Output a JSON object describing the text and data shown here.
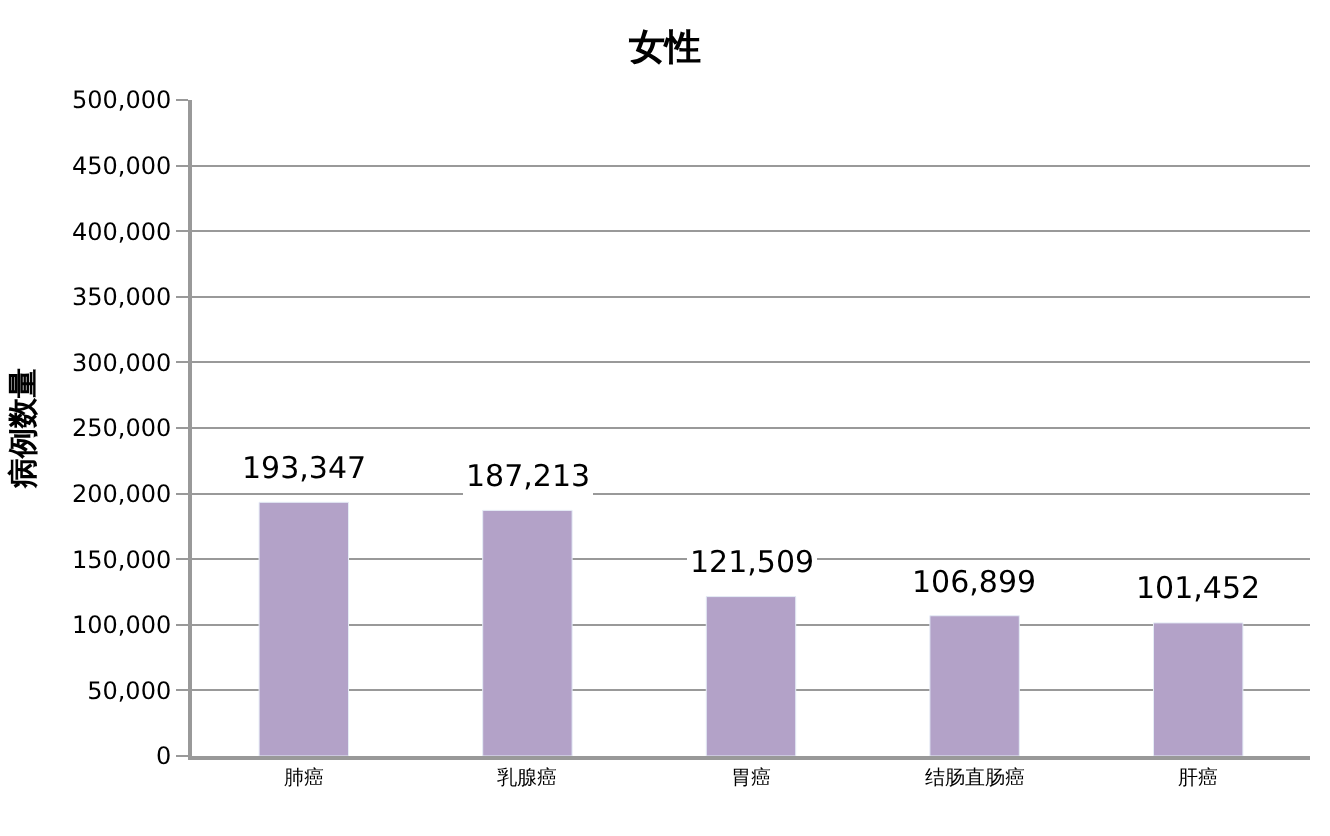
{
  "chart_data": {
    "type": "bar",
    "title": "女性",
    "ylabel": "病例数量",
    "categories": [
      "肺癌",
      "乳腺癌",
      "胃癌",
      "结肠直肠癌",
      "肝癌"
    ],
    "values": [
      193347,
      187213,
      121509,
      106899,
      101452
    ],
    "value_labels": [
      "193,347",
      "187,213",
      "121,509",
      "106,899",
      "101,452"
    ],
    "color": "#b3a2c8",
    "ylim": [
      0,
      500000
    ],
    "yticks": [
      {
        "value": 0,
        "label": "0"
      },
      {
        "value": 50000,
        "label": "50,000"
      },
      {
        "value": 100000,
        "label": "100,000"
      },
      {
        "value": 150000,
        "label": "150,000"
      },
      {
        "value": 200000,
        "label": "200,000"
      },
      {
        "value": 250000,
        "label": "250,000"
      },
      {
        "value": 300000,
        "label": "300,000"
      },
      {
        "value": 350000,
        "label": "350,000"
      },
      {
        "value": 400000,
        "label": "400,000"
      },
      {
        "value": 450000,
        "label": "450,000"
      },
      {
        "value": 500000,
        "label": "500,000"
      }
    ],
    "grid": "y",
    "legend": false
  }
}
